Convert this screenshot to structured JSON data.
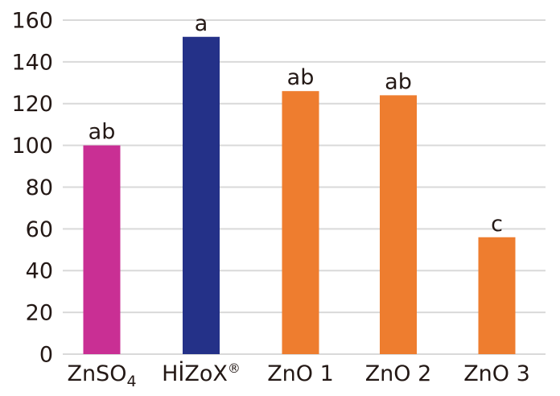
{
  "chart_data": {
    "type": "bar",
    "title": "",
    "xlabel": "",
    "ylabel": "",
    "categories": [
      "ZnSO₄",
      "HİZoX®",
      "ZnO 1",
      "ZnO 2",
      "ZnO 3"
    ],
    "category_parts": [
      {
        "base": "ZnSO",
        "sub": "4",
        "sup": ""
      },
      {
        "base": "HİZoX",
        "sub": "",
        "sup": "®"
      },
      {
        "base": "ZnO 1",
        "sub": "",
        "sup": ""
      },
      {
        "base": "ZnO 2",
        "sub": "",
        "sup": ""
      },
      {
        "base": "ZnO 3",
        "sub": "",
        "sup": ""
      }
    ],
    "values": [
      100,
      152,
      126,
      124,
      56
    ],
    "bar_labels": [
      "ab",
      "a",
      "ab",
      "ab",
      "c"
    ],
    "bar_colors": [
      "#c92f94",
      "#243188",
      "#ee7d2f",
      "#ee7d2f",
      "#ee7d2f"
    ],
    "ylim": [
      0,
      160
    ],
    "ytick_step": 20,
    "ytick_labels": [
      "0",
      "20",
      "40",
      "60",
      "80",
      "100",
      "120",
      "140",
      "160"
    ],
    "grid": true,
    "legend": "none",
    "colors": {
      "background": "#ffffff",
      "gridline": "#d9d9d9",
      "text": "#231815"
    }
  }
}
